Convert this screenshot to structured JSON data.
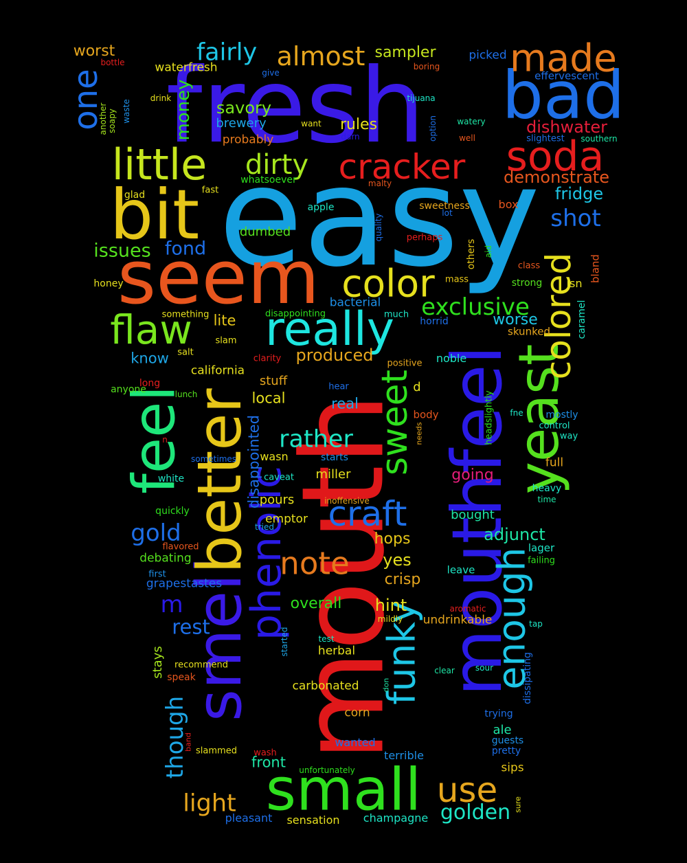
{
  "words": [
    {
      "text": "easy",
      "color": "#15a0e0"
    },
    {
      "text": "fresh",
      "color": "#3a1ae6"
    },
    {
      "text": "mouth",
      "color": "#e0181a"
    },
    {
      "text": "seem",
      "color": "#e8561e"
    },
    {
      "text": "bit",
      "color": "#e6c619"
    },
    {
      "text": "bad",
      "color": "#1e6fe8"
    },
    {
      "text": "small",
      "color": "#2fe01e"
    },
    {
      "text": "mouthfeel",
      "color": "#2a1ae6"
    },
    {
      "text": "smell",
      "color": "#3a1ae6"
    },
    {
      "text": "better",
      "color": "#e6c619"
    },
    {
      "text": "feel",
      "color": "#1ee67a"
    },
    {
      "text": "yeast",
      "color": "#55e01e"
    },
    {
      "text": "little",
      "color": "#c6e61e"
    },
    {
      "text": "really",
      "color": "#1ee6e0"
    },
    {
      "text": "soda",
      "color": "#e61e1e"
    },
    {
      "text": "made",
      "color": "#e67a1e"
    },
    {
      "text": "flaw",
      "color": "#7ae61e"
    },
    {
      "text": "color",
      "color": "#e6e01e"
    },
    {
      "text": "cracker",
      "color": "#e61e1e"
    },
    {
      "text": "phenolic",
      "color": "#2a1ae6"
    },
    {
      "text": "funky",
      "color": "#1ec6e6"
    },
    {
      "text": "sweet",
      "color": "#2fe01e"
    },
    {
      "text": "enough",
      "color": "#1ec6e6"
    },
    {
      "text": "colored",
      "color": "#e6e01e"
    },
    {
      "text": "craft",
      "color": "#1e6fe8"
    },
    {
      "text": "note",
      "color": "#e67a1e"
    },
    {
      "text": "use",
      "color": "#e6a61e"
    },
    {
      "text": "almost",
      "color": "#e6a61e"
    },
    {
      "text": "fairly",
      "color": "#1ec6e6"
    },
    {
      "text": "one",
      "color": "#1e6fe8"
    },
    {
      "text": "dirty",
      "color": "#a6e61e"
    },
    {
      "text": "exclusive",
      "color": "#2fe01e"
    },
    {
      "text": "rather",
      "color": "#1ee6c6"
    },
    {
      "text": "light",
      "color": "#e6a61e"
    },
    {
      "text": "golden",
      "color": "#1ee6c6"
    },
    {
      "text": "shot",
      "color": "#1e6fe8"
    },
    {
      "text": "gold",
      "color": "#1e6fe8"
    },
    {
      "text": "though",
      "color": "#1ea6e6"
    },
    {
      "text": "dishwater",
      "color": "#e61e3a"
    },
    {
      "text": "money",
      "color": "#2fe01e"
    },
    {
      "text": "demonstrate",
      "color": "#e6561e"
    },
    {
      "text": "fridge",
      "color": "#1ec6e6"
    },
    {
      "text": "issues",
      "color": "#55e01e"
    },
    {
      "text": "fond",
      "color": "#1e6fe8"
    },
    {
      "text": "savory",
      "color": "#7ae61e"
    },
    {
      "text": "m",
      "color": "#2a1ae6"
    },
    {
      "text": "rest",
      "color": "#1e6fe8"
    },
    {
      "text": "sampler",
      "color": "#c6e61e"
    },
    {
      "text": "worst",
      "color": "#e6a61e"
    },
    {
      "text": "adjunct",
      "color": "#1ee6a6"
    },
    {
      "text": "worse",
      "color": "#1ec6e6"
    },
    {
      "text": "produced",
      "color": "#e6a61e"
    },
    {
      "text": "hops",
      "color": "#e6c619"
    },
    {
      "text": "crisp",
      "color": "#e6a61e"
    },
    {
      "text": "yes",
      "color": "#e6e01e"
    },
    {
      "text": "hint",
      "color": "#e6e01e"
    },
    {
      "text": "overall",
      "color": "#2fe01e"
    },
    {
      "text": "rules",
      "color": "#e6e01e"
    },
    {
      "text": "waterfresh",
      "color": "#e6e01e"
    },
    {
      "text": "brewery",
      "color": "#1ea6e6"
    },
    {
      "text": "probably",
      "color": "#e67a1e"
    },
    {
      "text": "dumbed",
      "color": "#55e01e"
    },
    {
      "text": "know",
      "color": "#1ea6e6"
    },
    {
      "text": "lite",
      "color": "#e6c619"
    },
    {
      "text": "bacterial",
      "color": "#1e8fe6"
    },
    {
      "text": "real",
      "color": "#1ea6e6"
    },
    {
      "text": "local",
      "color": "#e6e01e"
    },
    {
      "text": "stuff",
      "color": "#e6a61e"
    },
    {
      "text": "california",
      "color": "#e6e01e"
    },
    {
      "text": "disappointed",
      "color": "#1e6fe8"
    },
    {
      "text": "pours",
      "color": "#e6e01e"
    },
    {
      "text": "emptor",
      "color": "#e6e01e"
    },
    {
      "text": "miller",
      "color": "#e6e01e"
    },
    {
      "text": "going",
      "color": "#e61e7a"
    },
    {
      "text": "bought",
      "color": "#1ee6a6"
    },
    {
      "text": "ale",
      "color": "#1ee6a6"
    },
    {
      "text": "sips",
      "color": "#e6c619"
    },
    {
      "text": "front",
      "color": "#1ee6a6"
    },
    {
      "text": "corn",
      "color": "#e6a61e"
    },
    {
      "text": "carbonated",
      "color": "#e6e01e"
    },
    {
      "text": "herbal",
      "color": "#e6e01e"
    },
    {
      "text": "undrinkable",
      "color": "#e6a61e"
    },
    {
      "text": "stays",
      "color": "#a6e61e"
    },
    {
      "text": "debating",
      "color": "#55e01e"
    },
    {
      "text": "grapestastes",
      "color": "#1e6fe8"
    },
    {
      "text": "picked",
      "color": "#1e6fe8"
    },
    {
      "text": "effervescent",
      "color": "#1e6fe8"
    },
    {
      "text": "bottle",
      "color": "#e61e1e"
    },
    {
      "text": "boring",
      "color": "#e6561e"
    },
    {
      "text": "give",
      "color": "#1e6fe8"
    },
    {
      "text": "tijuana",
      "color": "#1ee6c6"
    },
    {
      "text": "drink",
      "color": "#e6e01e"
    },
    {
      "text": "want",
      "color": "#e6e01e"
    },
    {
      "text": "watery",
      "color": "#1ee6a6"
    },
    {
      "text": "darn",
      "color": "#2a1ae6"
    },
    {
      "text": "well",
      "color": "#e6561e"
    },
    {
      "text": "slightest",
      "color": "#1e6fe8"
    },
    {
      "text": "southern",
      "color": "#1ee6a6"
    },
    {
      "text": "option",
      "color": "#1e6fe8"
    },
    {
      "text": "another",
      "color": "#a6e61e"
    },
    {
      "text": "soapy",
      "color": "#a6e61e"
    },
    {
      "text": "waste",
      "color": "#1e8fe6"
    },
    {
      "text": "whatsoever",
      "color": "#2fe01e"
    },
    {
      "text": "malty",
      "color": "#e6561e"
    },
    {
      "text": "fast",
      "color": "#e6e01e"
    },
    {
      "text": "glad",
      "color": "#e6e01e"
    },
    {
      "text": "apple",
      "color": "#1ee6c6"
    },
    {
      "text": "lot",
      "color": "#1e6fe8"
    },
    {
      "text": "sweetness",
      "color": "#e6a61e"
    },
    {
      "text": "box",
      "color": "#e6561e"
    },
    {
      "text": "quality",
      "color": "#1e6fe8"
    },
    {
      "text": "perhaps",
      "color": "#e61e1e"
    },
    {
      "text": "others",
      "color": "#e6c619"
    },
    {
      "text": "aid",
      "color": "#2fe01e"
    },
    {
      "text": "class",
      "color": "#e6561e"
    },
    {
      "text": "strong",
      "color": "#55e01e"
    },
    {
      "text": "isn",
      "color": "#e6e01e"
    },
    {
      "text": "bland",
      "color": "#e6561e"
    },
    {
      "text": "caramel",
      "color": "#1ee6c6"
    },
    {
      "text": "mass",
      "color": "#e6c619"
    },
    {
      "text": "honey",
      "color": "#e6e01e"
    },
    {
      "text": "something",
      "color": "#e6e01e"
    },
    {
      "text": "disappointing",
      "color": "#2fe01e"
    },
    {
      "text": "much",
      "color": "#1ee6c6"
    },
    {
      "text": "horrid",
      "color": "#1e6fe8"
    },
    {
      "text": "skunked",
      "color": "#e6a61e"
    },
    {
      "text": "slam",
      "color": "#e6e01e"
    },
    {
      "text": "salt",
      "color": "#e6e01e"
    },
    {
      "text": "clarity",
      "color": "#e61e1e"
    },
    {
      "text": "positive",
      "color": "#e6a61e"
    },
    {
      "text": "noble",
      "color": "#1ee6c6"
    },
    {
      "text": "long",
      "color": "#e61e1e"
    },
    {
      "text": "anyone",
      "color": "#55e01e"
    },
    {
      "text": "lunch",
      "color": "#55e01e"
    },
    {
      "text": "hear",
      "color": "#1e6fe8"
    },
    {
      "text": "d",
      "color": "#e6e01e"
    },
    {
      "text": "body",
      "color": "#e6561e"
    },
    {
      "text": "needs",
      "color": "#e6a61e"
    },
    {
      "text": "headslightly",
      "color": "#2fe01e"
    },
    {
      "text": "fne",
      "color": "#1ee6c6"
    },
    {
      "text": "mostly",
      "color": "#1e8fe6"
    },
    {
      "text": "control",
      "color": "#1ee6c6"
    },
    {
      "text": "way",
      "color": "#1ee6c6"
    },
    {
      "text": "n",
      "color": "#e61e1e"
    },
    {
      "text": "sometimes",
      "color": "#1e6fe8"
    },
    {
      "text": "wasn",
      "color": "#e6e01e"
    },
    {
      "text": "starts",
      "color": "#1e8fe6"
    },
    {
      "text": "caveat",
      "color": "#1ee6c6"
    },
    {
      "text": "white",
      "color": "#1ee6c6"
    },
    {
      "text": "inoffensive",
      "color": "#e6a61e"
    },
    {
      "text": "full",
      "color": "#e6a61e"
    },
    {
      "text": "heavy",
      "color": "#1ee6c6"
    },
    {
      "text": "time",
      "color": "#1ee6a6"
    },
    {
      "text": "quickly",
      "color": "#2fe01e"
    },
    {
      "text": "tried",
      "color": "#1ea6e6"
    },
    {
      "text": "flavored",
      "color": "#e6561e"
    },
    {
      "text": "lager",
      "color": "#1ee6c6"
    },
    {
      "text": "failing",
      "color": "#2fe01e"
    },
    {
      "text": "first",
      "color": "#1e8fe6"
    },
    {
      "text": "leave",
      "color": "#1ee6c6"
    },
    {
      "text": "aromatic",
      "color": "#e61e1e"
    },
    {
      "text": "mildly",
      "color": "#e6e01e"
    },
    {
      "text": "tap",
      "color": "#1ee6c6"
    },
    {
      "text": "test",
      "color": "#1ee6c6"
    },
    {
      "text": "started",
      "color": "#1ea6e6"
    },
    {
      "text": "dissipating",
      "color": "#1e6fe8"
    },
    {
      "text": "recommend",
      "color": "#e6e01e"
    },
    {
      "text": "clear",
      "color": "#1ee6a6"
    },
    {
      "text": "sour",
      "color": "#1ee6c6"
    },
    {
      "text": "speak",
      "color": "#e6561e"
    },
    {
      "text": "don",
      "color": "#1ee6a6"
    },
    {
      "text": "trying",
      "color": "#1e6fe8"
    },
    {
      "text": "wanted",
      "color": "#1e6fe8"
    },
    {
      "text": "guests",
      "color": "#1e8fe6"
    },
    {
      "text": "band",
      "color": "#e61e1e"
    },
    {
      "text": "slammed",
      "color": "#e6e01e"
    },
    {
      "text": "wash",
      "color": "#e61e1e"
    },
    {
      "text": "pretty",
      "color": "#1e6fe8"
    },
    {
      "text": "terrible",
      "color": "#1e8fe6"
    },
    {
      "text": "unfortunately",
      "color": "#2fe01e"
    },
    {
      "text": "sure",
      "color": "#e6e01e"
    },
    {
      "text": "pleasant",
      "color": "#1e6fe8"
    },
    {
      "text": "sensation",
      "color": "#e6e01e"
    },
    {
      "text": "champagne",
      "color": "#1ee6c6"
    }
  ]
}
